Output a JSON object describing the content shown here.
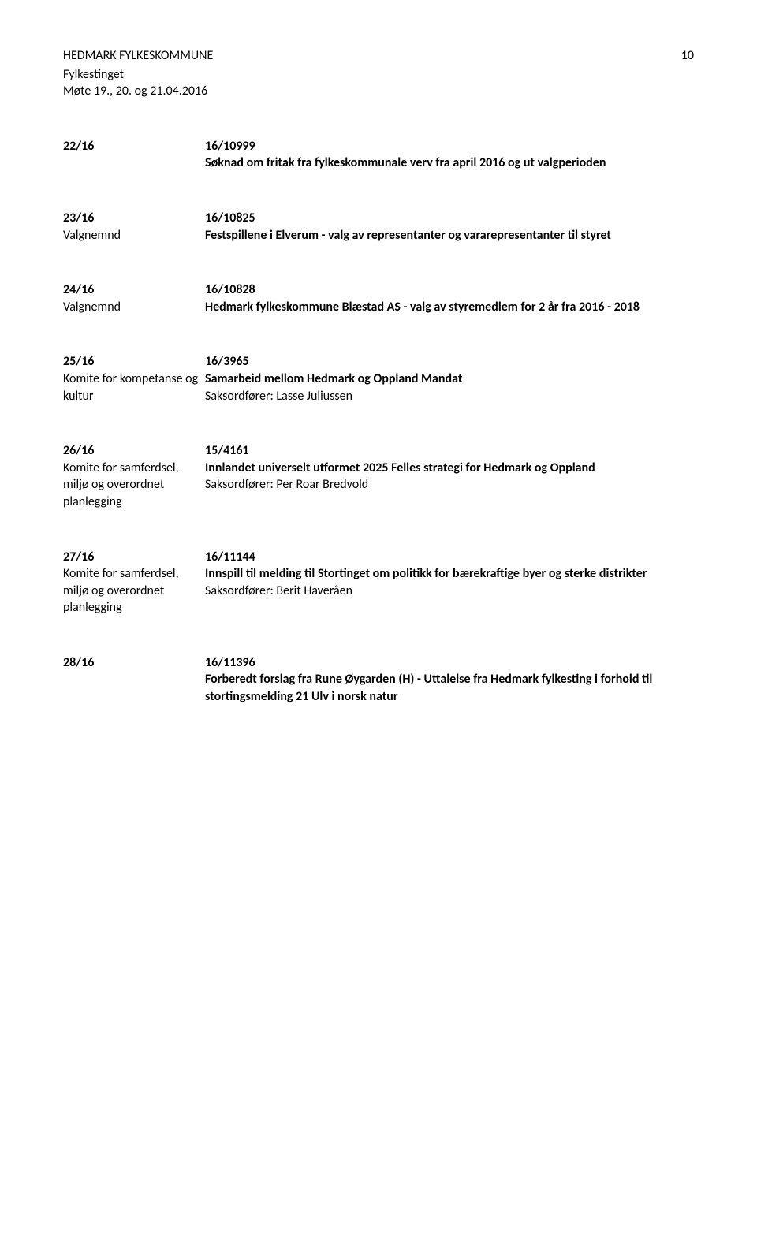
{
  "header": {
    "org": "HEDMARK FYLKESKOMMUNE",
    "pagenum": "10",
    "body": "Fylkestinget",
    "meeting": "Møte 19., 20. og 21.04.2016"
  },
  "items": [
    {
      "left": [
        "22/16",
        ""
      ],
      "right": [
        "16/10999",
        "Søknad om fritak fra fylkeskommunale verv fra april 2016 og ut valgperioden"
      ],
      "bold_left": [
        "22/16"
      ],
      "bold_right": [
        "16/10999",
        "Søknad om fritak fra fylkeskommunale verv fra april 2016 og ut valgperioden"
      ]
    },
    {
      "left": [
        "23/16",
        "Valgnemnd"
      ],
      "right": [
        "16/10825",
        "Festspillene i Elverum - valg av representanter og vararepresentanter til styret"
      ],
      "bold_left": [
        "23/16"
      ],
      "bold_right": [
        "16/10825",
        "Festspillene i Elverum - valg av representanter og vararepresentanter til styret"
      ]
    },
    {
      "left": [
        "24/16",
        "Valgnemnd"
      ],
      "right": [
        "16/10828",
        "Hedmark fylkeskommune Blæstad AS - valg av styremedlem for 2 år fra 2016 - 2018"
      ],
      "bold_left": [
        "24/16"
      ],
      "bold_right": [
        "16/10828",
        "Hedmark fylkeskommune Blæstad AS - valg av styremedlem for 2 år fra 2016 - 2018"
      ]
    },
    {
      "left": [
        "25/16",
        "Komite for kompetanse og kultur"
      ],
      "right": [
        "16/3965",
        "Samarbeid mellom Hedmark og Oppland Mandat",
        "Saksordfører: Lasse Juliussen"
      ],
      "bold_left": [
        "25/16"
      ],
      "bold_right": [
        "16/3965",
        "Samarbeid mellom Hedmark og Oppland Mandat"
      ]
    },
    {
      "left": [
        "26/16",
        "Komite for samferdsel, miljø og overordnet planlegging"
      ],
      "right": [
        "15/4161",
        "Innlandet universelt utformet 2025 Felles strategi for Hedmark og Oppland",
        "Saksordfører: Per Roar Bredvold"
      ],
      "bold_left": [
        "26/16"
      ],
      "bold_right": [
        "15/4161",
        "Innlandet universelt utformet 2025 Felles strategi for Hedmark og Oppland"
      ]
    },
    {
      "left": [
        "27/16",
        "Komite for samferdsel, miljø og overordnet planlegging"
      ],
      "right": [
        "16/11144",
        "Innspill til melding til Stortinget om politikk for bærekraftige byer og sterke distrikter",
        "Saksordfører: Berit Haveråen"
      ],
      "bold_left": [
        "27/16"
      ],
      "bold_right": [
        "16/11144",
        "Innspill til melding til Stortinget om politikk for bærekraftige byer og sterke distrikter"
      ]
    },
    {
      "left": [
        "28/16",
        ""
      ],
      "right": [
        "16/11396",
        "Forberedt forslag fra Rune Øygarden (H) - Uttalelse fra Hedmark fylkesting i forhold til stortingsmelding 21 Ulv i norsk natur"
      ],
      "bold_left": [
        "28/16"
      ],
      "bold_right": [
        "16/11396",
        "Forberedt forslag fra Rune Øygarden (H) - Uttalelse fra Hedmark fylkesting i forhold til stortingsmelding 21 Ulv i norsk natur"
      ]
    }
  ]
}
